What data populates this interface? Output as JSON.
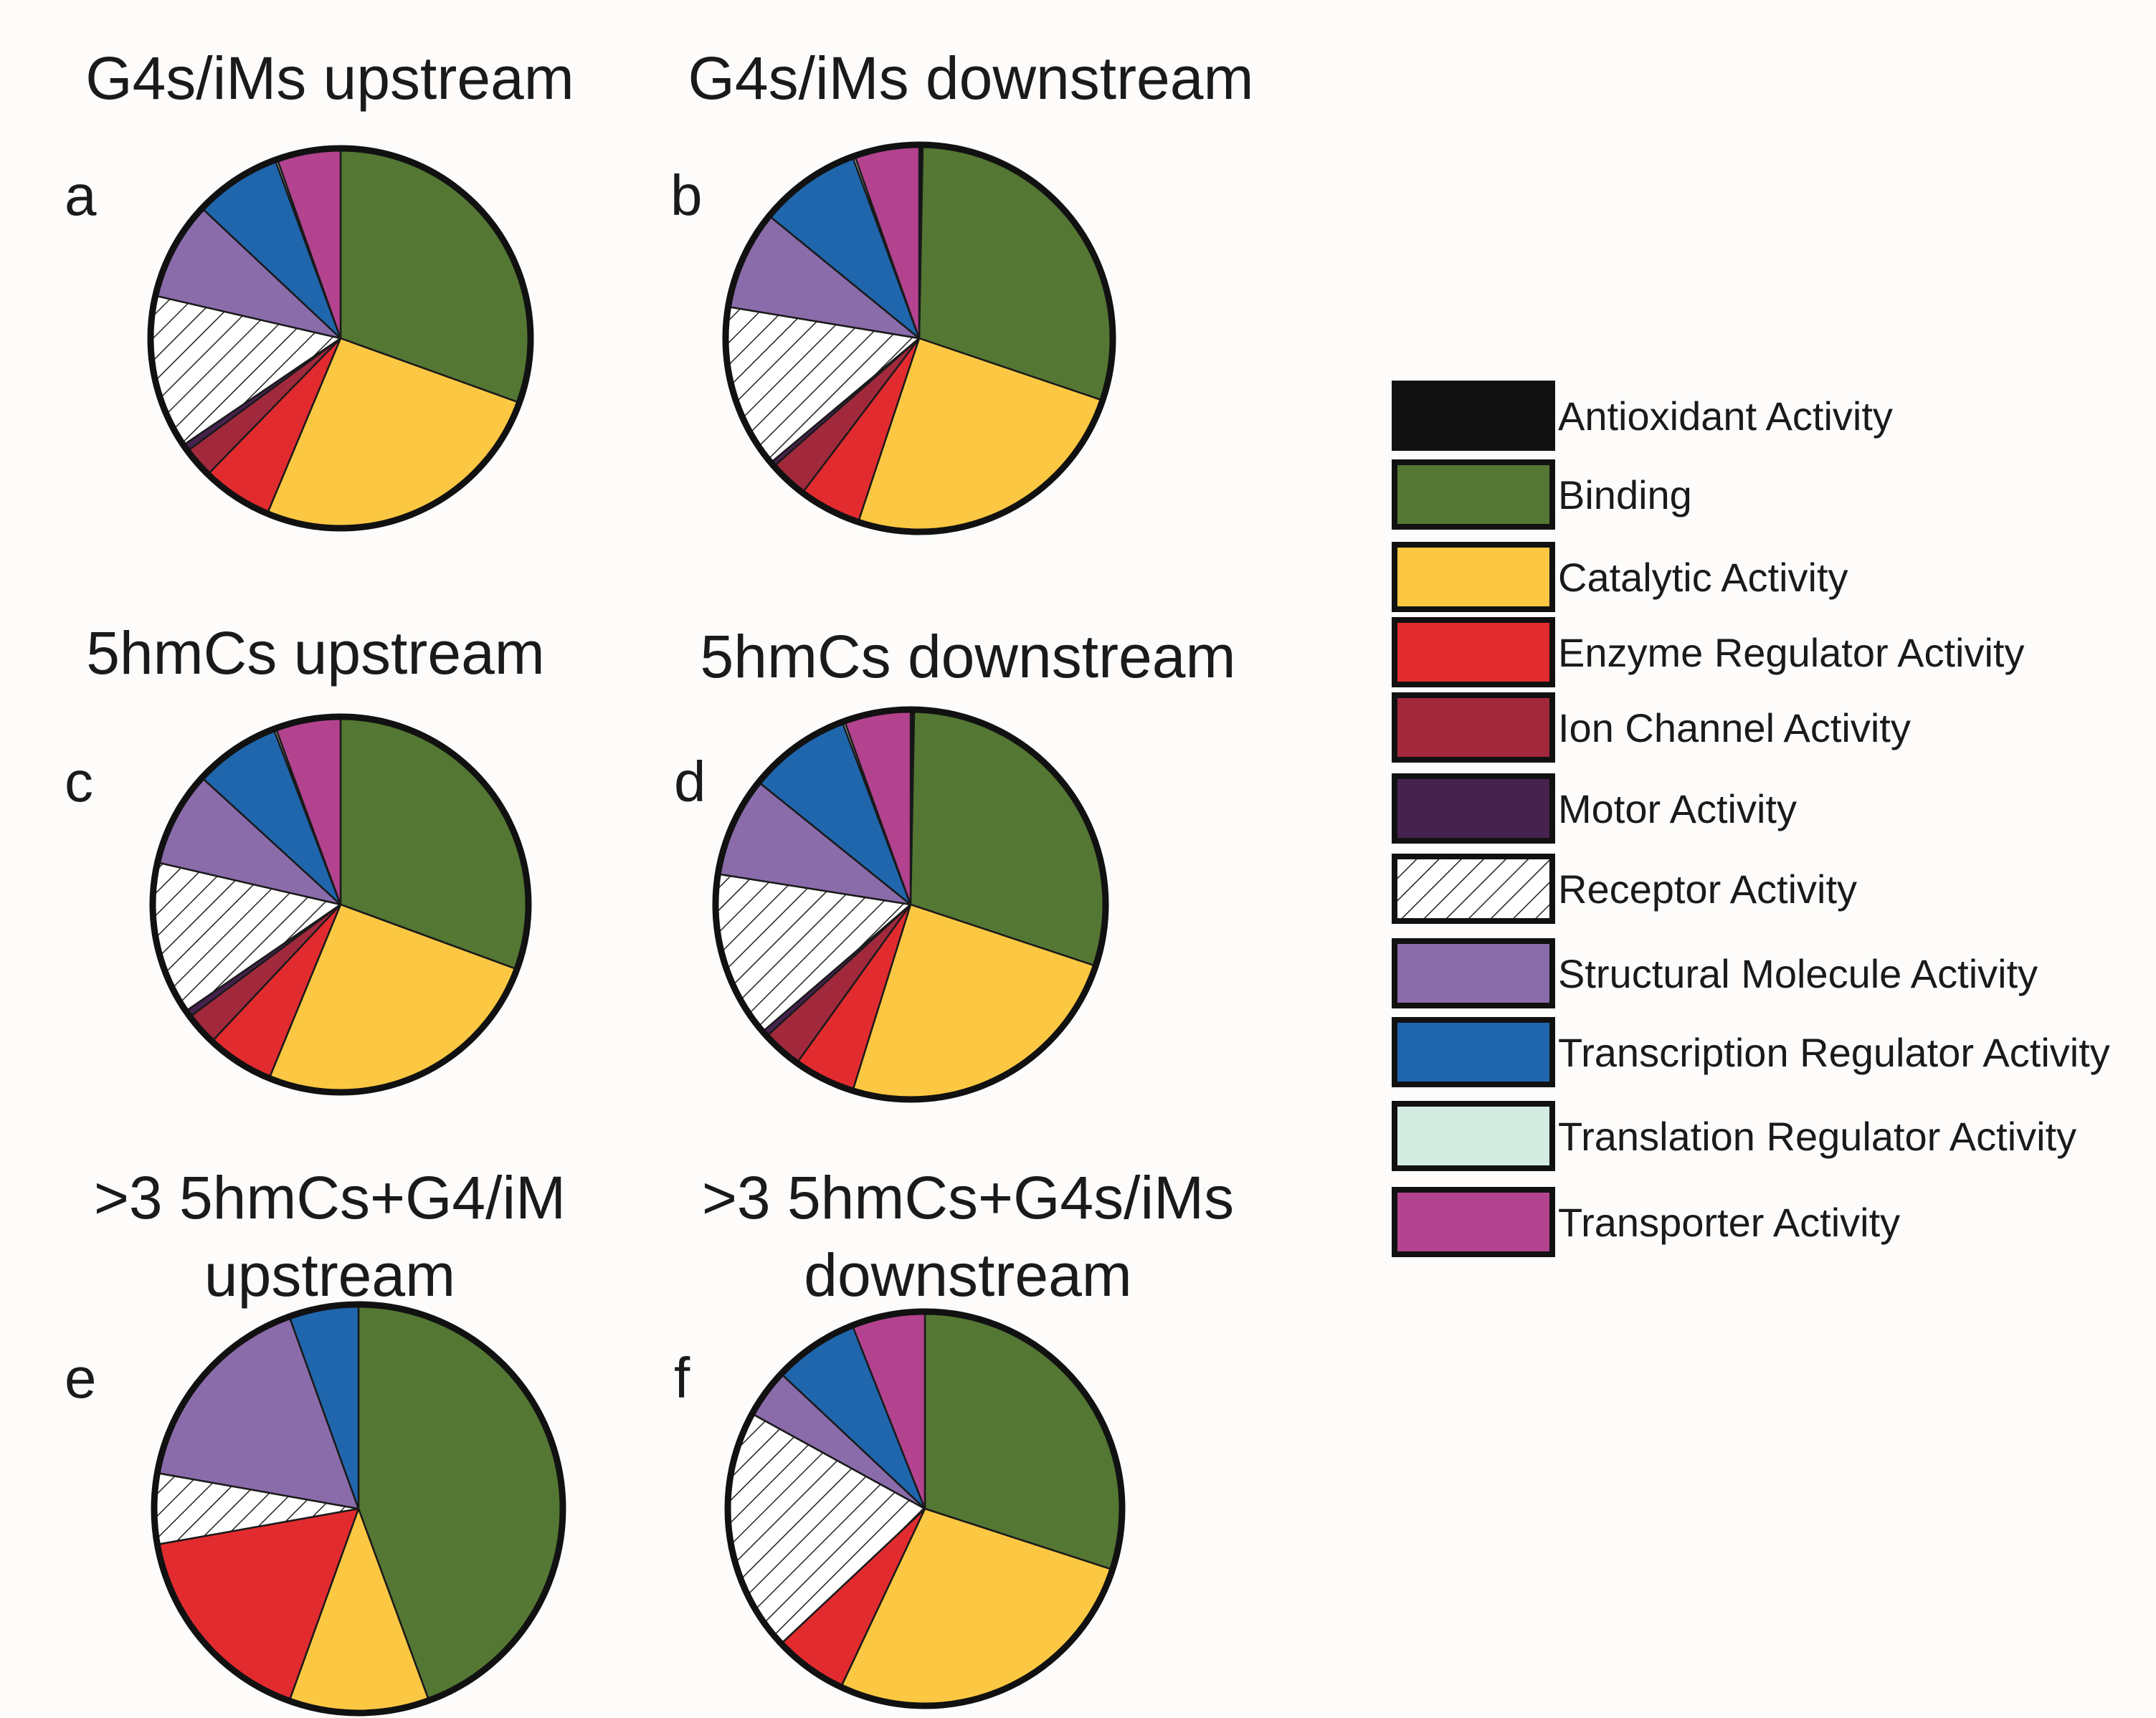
{
  "colors": {
    "Antioxidant Activity": "#111111",
    "Binding": "#547734",
    "Catalytic Activity": "#fcc843",
    "Enzyme Regulator Activity": "#e22b2f",
    "Ion Channel Activity": "#a2293c",
    "Motor Activity": "#46224e",
    "Receptor Activity": "hatch",
    "Structural Molecule Activity": "#8a6cab",
    "Transcription Regulator Activity": "#1f66ad",
    "Translation Regulator Activity": "#d3ebe0",
    "Transporter Activity": "#b3438f"
  },
  "legend": {
    "items": [
      "Antioxidant Activity",
      "Binding",
      "Catalytic Activity",
      "Enzyme Regulator Activity",
      "Ion Channel Activity",
      "Motor Activity",
      "Receptor Activity",
      "Structural Molecule Activity",
      "Transcription Regulator Activity",
      "Translation Regulator Activity",
      "Transporter Activity"
    ]
  },
  "chart_data": [
    {
      "type": "pie",
      "panel": "a",
      "title": [
        "G4s/iMs upstream"
      ],
      "slices": [
        {
          "label": "Binding",
          "value": 30.5
        },
        {
          "label": "Catalytic Activity",
          "value": 25.8
        },
        {
          "label": "Enzyme Regulator Activity",
          "value": 6.0
        },
        {
          "label": "Ion Channel Activity",
          "value": 2.6
        },
        {
          "label": "Motor Activity",
          "value": 0.6
        },
        {
          "label": "Receptor Activity",
          "value": 13.1
        },
        {
          "label": "Structural Molecule Activity",
          "value": 8.4
        },
        {
          "label": "Transcription Regulator Activity",
          "value": 7.4
        },
        {
          "label": "Translation Regulator Activity",
          "value": 0.2
        },
        {
          "label": "Transporter Activity",
          "value": 5.4
        }
      ]
    },
    {
      "type": "pie",
      "panel": "b",
      "title": [
        "G4s/iMs downstream"
      ],
      "slices": [
        {
          "label": "Antioxidant Activity",
          "value": 0.3
        },
        {
          "label": "Binding",
          "value": 29.9
        },
        {
          "label": "Catalytic Activity",
          "value": 24.9
        },
        {
          "label": "Enzyme Regulator Activity",
          "value": 5.2
        },
        {
          "label": "Ion Channel Activity",
          "value": 3.2
        },
        {
          "label": "Motor Activity",
          "value": 0.4
        },
        {
          "label": "Receptor Activity",
          "value": 13.7
        },
        {
          "label": "Structural Molecule Activity",
          "value": 8.3
        },
        {
          "label": "Transcription Regulator Activity",
          "value": 8.5
        },
        {
          "label": "Translation Regulator Activity",
          "value": 0.2
        },
        {
          "label": "Transporter Activity",
          "value": 5.4
        }
      ]
    },
    {
      "type": "pie",
      "panel": "c",
      "title": [
        "5hmCs upstream"
      ],
      "slices": [
        {
          "label": "Binding",
          "value": 30.6
        },
        {
          "label": "Catalytic Activity",
          "value": 25.6
        },
        {
          "label": "Enzyme Regulator Activity",
          "value": 5.8
        },
        {
          "label": "Ion Channel Activity",
          "value": 2.8
        },
        {
          "label": "Motor Activity",
          "value": 0.6
        },
        {
          "label": "Receptor Activity",
          "value": 13.2
        },
        {
          "label": "Structural Molecule Activity",
          "value": 8.2
        },
        {
          "label": "Transcription Regulator Activity",
          "value": 7.4
        },
        {
          "label": "Translation Regulator Activity",
          "value": 0.2
        },
        {
          "label": "Transporter Activity",
          "value": 5.6
        }
      ]
    },
    {
      "type": "pie",
      "panel": "d",
      "title": [
        "5hmCs downstream"
      ],
      "slices": [
        {
          "label": "Antioxidant Activity",
          "value": 0.3
        },
        {
          "label": "Binding",
          "value": 29.8
        },
        {
          "label": "Catalytic Activity",
          "value": 24.7
        },
        {
          "label": "Enzyme Regulator Activity",
          "value": 5.1
        },
        {
          "label": "Ion Channel Activity",
          "value": 3.3
        },
        {
          "label": "Motor Activity",
          "value": 0.5
        },
        {
          "label": "Receptor Activity",
          "value": 13.8
        },
        {
          "label": "Structural Molecule Activity",
          "value": 8.3
        },
        {
          "label": "Transcription Regulator Activity",
          "value": 8.5
        },
        {
          "label": "Translation Regulator Activity",
          "value": 0.2
        },
        {
          "label": "Transporter Activity",
          "value": 5.5
        }
      ]
    },
    {
      "type": "pie",
      "panel": "e",
      "title": [
        ">3 5hmCs+G4/iM",
        "upstream"
      ],
      "slices": [
        {
          "label": "Binding",
          "value": 44.4
        },
        {
          "label": "Catalytic Activity",
          "value": 11.1
        },
        {
          "label": "Enzyme Regulator Activity",
          "value": 16.7
        },
        {
          "label": "Receptor Activity",
          "value": 5.6
        },
        {
          "label": "Structural Molecule Activity",
          "value": 16.7
        },
        {
          "label": "Transcription Regulator Activity",
          "value": 5.5
        }
      ]
    },
    {
      "type": "pie",
      "panel": "f",
      "title": [
        ">3 5hmCs+G4s/iMs",
        "downstream"
      ],
      "slices": [
        {
          "label": "Binding",
          "value": 30.0
        },
        {
          "label": "Catalytic Activity",
          "value": 27.0
        },
        {
          "label": "Enzyme Regulator Activity",
          "value": 6.0
        },
        {
          "label": "Receptor Activity",
          "value": 20.0
        },
        {
          "label": "Structural Molecule Activity",
          "value": 4.0
        },
        {
          "label": "Transcription Regulator Activity",
          "value": 7.0
        },
        {
          "label": "Transporter Activity",
          "value": 6.0
        }
      ]
    }
  ]
}
